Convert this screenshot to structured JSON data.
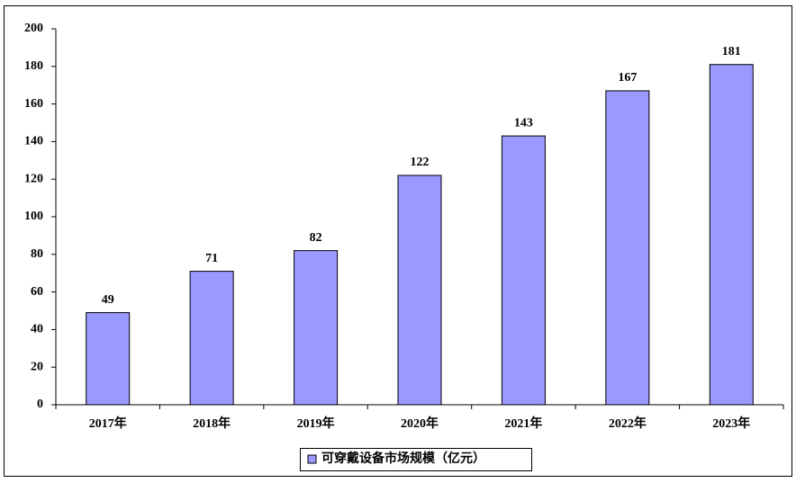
{
  "chart_data": {
    "type": "bar",
    "categories": [
      "2017年",
      "2018年",
      "2019年",
      "2020年",
      "2021年",
      "2022年",
      "2023年"
    ],
    "series": [
      {
        "name": "可穿戴设备市场规模（亿元）",
        "color": "#9999ff",
        "values": [
          49,
          71,
          82,
          122,
          143,
          167,
          181
        ]
      }
    ],
    "ylim": [
      0,
      200
    ],
    "yticks": [
      0,
      20,
      40,
      60,
      80,
      100,
      120,
      140,
      160,
      180,
      200
    ],
    "grid": false,
    "legend": "bottom"
  }
}
